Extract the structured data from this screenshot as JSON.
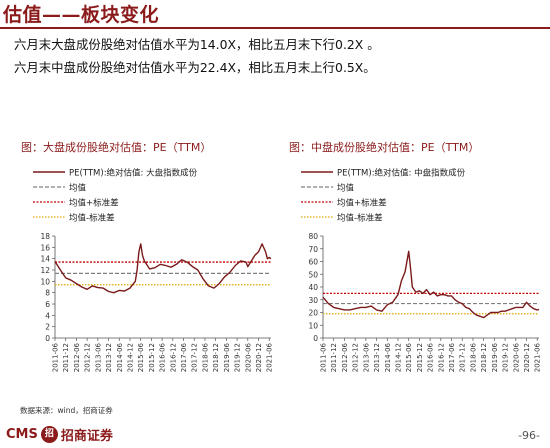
{
  "header": {
    "title": "估值——板块变化"
  },
  "bullets": [
    "六月末大盘成份股绝对估值水平为14.0X，相比五月末下行0.2X 。",
    "六月末中盘成份股绝对估值水平为22.4X，相比五月末上行0.5X。"
  ],
  "footer": {
    "source": "数据来源：wind，招商证券",
    "logo_text": "CMS",
    "logo_mark": "招",
    "logo_cn": "招商证券",
    "page": "-96-"
  },
  "colors": {
    "series": "#7b1a1a",
    "mean": "#808080",
    "plus_sd": "#c00000",
    "minus_sd": "#e0a800"
  },
  "chart_data": [
    {
      "type": "line",
      "title": "图：大盘成份股绝对估值：PE（TTM）",
      "x_ticks": [
        "2011-06",
        "2011-12",
        "2012-06",
        "2012-12",
        "2013-06",
        "2013-12",
        "2014-06",
        "2014-12",
        "2015-06",
        "2015-12",
        "2016-06",
        "2016-12",
        "2017-06",
        "2017-12",
        "2018-06",
        "2018-12",
        "2019-06",
        "2019-12",
        "2020-06",
        "2020-12",
        "2021-06"
      ],
      "ylim": [
        0,
        18
      ],
      "y_ticks": [
        0,
        2,
        4,
        6,
        8,
        10,
        12,
        14,
        16,
        18
      ],
      "legend": [
        "PE(TTM):绝对估值: 大盘指数成份",
        "均值",
        "均值+标准差",
        "均值-标准差"
      ],
      "mean": 11.4,
      "plus_sd": 13.4,
      "minus_sd": 9.4,
      "series": [
        {
          "name": "PE(TTM):绝对估值: 大盘指数成份",
          "x_month_index": [
            0,
            3,
            6,
            9,
            12,
            15,
            18,
            21,
            24,
            27,
            30,
            33,
            36,
            39,
            42,
            45,
            46,
            47,
            48,
            49,
            50,
            53,
            56,
            59,
            62,
            65,
            68,
            71,
            74,
            77,
            80,
            83,
            86,
            89,
            92,
            95,
            98,
            101,
            104,
            107,
            108,
            110,
            112,
            114,
            116,
            118,
            119,
            120,
            121
          ],
          "values": [
            13.5,
            12.0,
            10.6,
            10.2,
            9.6,
            9.0,
            8.6,
            9.2,
            8.9,
            8.8,
            8.2,
            8.0,
            8.4,
            8.3,
            8.8,
            10.0,
            12.0,
            15.2,
            16.6,
            14.6,
            13.6,
            12.2,
            12.4,
            13.0,
            12.8,
            12.5,
            13.0,
            13.8,
            13.4,
            12.6,
            12.0,
            10.4,
            9.2,
            8.8,
            9.6,
            10.8,
            11.6,
            12.8,
            13.6,
            13.4,
            12.6,
            13.6,
            14.6,
            15.2,
            16.6,
            15.2,
            14.0,
            14.2,
            14.0
          ]
        }
      ]
    },
    {
      "type": "line",
      "title": "图：中盘成份股绝对估值：PE（TTM）",
      "x_ticks": [
        "2011-06",
        "2011-12",
        "2012-06",
        "2012-12",
        "2013-06",
        "2013-12",
        "2014-06",
        "2014-12",
        "2015-06",
        "2015-12",
        "2016-06",
        "2016-12",
        "2017-06",
        "2017-12",
        "2018-06",
        "2018-12",
        "2019-06",
        "2019-12",
        "2020-06",
        "2020-12",
        "2021-06"
      ],
      "ylim": [
        0,
        80
      ],
      "y_ticks": [
        0,
        10,
        20,
        30,
        40,
        50,
        60,
        70,
        80
      ],
      "legend": [
        "PE(TTM):绝对估值: 中盘指数成份",
        "均值",
        "均值+标准差",
        "均值-标准差"
      ],
      "mean": 27.0,
      "plus_sd": 35.0,
      "minus_sd": 19.0,
      "series": [
        {
          "name": "PE(TTM):绝对估值: 中盘指数成份",
          "x_month_index": [
            0,
            3,
            6,
            9,
            12,
            15,
            18,
            21,
            24,
            27,
            30,
            33,
            36,
            39,
            42,
            44,
            46,
            47,
            48,
            49,
            50,
            52,
            54,
            56,
            58,
            60,
            62,
            64,
            66,
            68,
            70,
            72,
            74,
            76,
            78,
            80,
            82,
            84,
            86,
            88,
            90,
            92,
            94,
            96,
            98,
            100,
            102,
            104,
            106,
            108,
            110,
            112,
            114,
            116,
            118,
            120,
            121
          ],
          "values": [
            32,
            27,
            24,
            23,
            22,
            22,
            23,
            24,
            24,
            25,
            22,
            21,
            26,
            28,
            34,
            45,
            52,
            60,
            68,
            55,
            40,
            36,
            37,
            35,
            38,
            34,
            36,
            33,
            34,
            34,
            33,
            33,
            30,
            28,
            27,
            24,
            23,
            20,
            18,
            17,
            16,
            18,
            20,
            20,
            20,
            21,
            21,
            22,
            23,
            24,
            24,
            24,
            28,
            25,
            23,
            22,
            22.4
          ]
        }
      ]
    }
  ]
}
